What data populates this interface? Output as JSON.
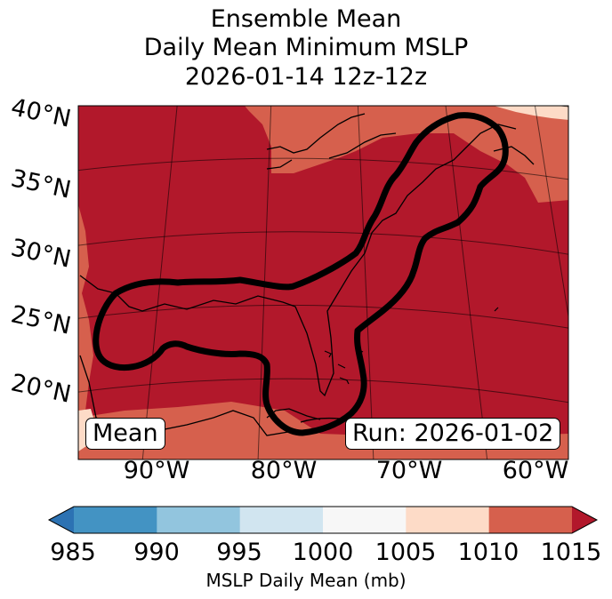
{
  "title": {
    "line1": "Ensemble Mean",
    "line2": "Daily Mean Minimum MSLP",
    "line3": "2026-01-14 12z-12z"
  },
  "map": {
    "lat_labels": [
      "40°N",
      "35°N",
      "30°N",
      "25°N",
      "20°N"
    ],
    "lon_labels": [
      "90°W",
      "80°W",
      "70°W",
      "60°W"
    ],
    "mean_label": "Mean",
    "run_label": "Run: 2026-01-02",
    "contour_color": "#000000"
  },
  "colorbar": {
    "ticks": [
      "985",
      "990",
      "995",
      "1000",
      "1005",
      "1010",
      "1015"
    ],
    "label": "MSLP Daily Mean (mb)",
    "colors": [
      "#2c72b3",
      "#4393c3",
      "#92c5de",
      "#d1e5f0",
      "#f7f7f7",
      "#fddbc7",
      "#d6604d",
      "#b2182b"
    ]
  }
}
